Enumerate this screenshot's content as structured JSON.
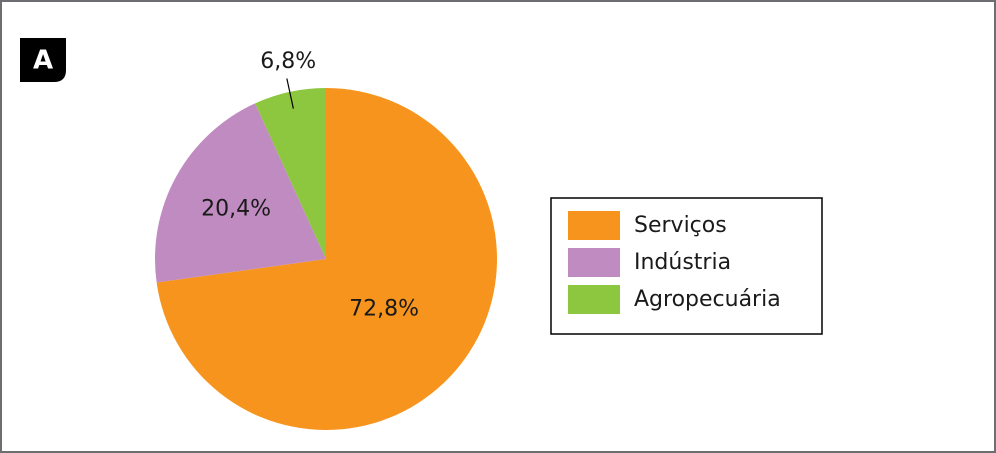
{
  "chart_data": {
    "type": "pie",
    "panel_label": "A",
    "categories": [
      "Serviços",
      "Indústria",
      "Agropecuária"
    ],
    "values": [
      72.8,
      20.4,
      6.8
    ],
    "value_labels": [
      "72,8%",
      "20,4%",
      "6,8%"
    ],
    "colors": [
      "#f7941d",
      "#bf8bc0",
      "#8dc63f"
    ],
    "legend": "right"
  }
}
